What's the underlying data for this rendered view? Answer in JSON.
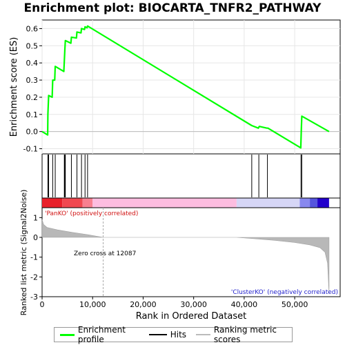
{
  "title": "Enrichment plot: BIOCARTA_TNFR2_PATHWAY",
  "chart_data": {
    "type": "line",
    "x_label": "Rank in Ordered Dataset",
    "y_label_top": "Enrichment score (ES)",
    "y_label_bottom": "Ranked list metric (Signal2Noise)",
    "x_range": [
      0,
      59000
    ],
    "x_ticks": [
      0,
      10000,
      20000,
      30000,
      40000,
      50000
    ],
    "x_tick_labels": [
      "0",
      "10,000",
      "20,000",
      "30,000",
      "40,000",
      "50,000"
    ],
    "es_range": [
      -0.13,
      0.65
    ],
    "es_ticks": [
      -0.1,
      0.0,
      0.1,
      0.2,
      0.3,
      0.4,
      0.5,
      0.6
    ],
    "es_tick_labels": [
      "-0.1",
      "0.0",
      "0.1",
      "0.2",
      "0.3",
      "0.4",
      "0.5",
      "0.6"
    ],
    "metric_range": [
      -3,
      1.5
    ],
    "metric_ticks": [
      -3,
      -2,
      -1,
      0,
      1
    ],
    "metric_tick_labels": [
      "-3",
      "-2",
      "-1",
      "0",
      "1"
    ],
    "es_color": "#00ff00",
    "es_points": [
      [
        0,
        0.0
      ],
      [
        1100,
        -0.02
      ],
      [
        1150,
        0.1
      ],
      [
        1300,
        0.21
      ],
      [
        2000,
        0.2
      ],
      [
        2100,
        0.3
      ],
      [
        2500,
        0.3
      ],
      [
        2600,
        0.38
      ],
      [
        4300,
        0.35
      ],
      [
        4400,
        0.41
      ],
      [
        4500,
        0.47
      ],
      [
        4600,
        0.53
      ],
      [
        5700,
        0.515
      ],
      [
        5800,
        0.55
      ],
      [
        6800,
        0.545
      ],
      [
        6900,
        0.58
      ],
      [
        7700,
        0.575
      ],
      [
        7800,
        0.6
      ],
      [
        8400,
        0.595
      ],
      [
        8500,
        0.61
      ],
      [
        8900,
        0.605
      ],
      [
        9000,
        0.615
      ],
      [
        41500,
        0.035
      ],
      [
        42800,
        0.02
      ],
      [
        43000,
        0.03
      ],
      [
        44500,
        0.02
      ],
      [
        44700,
        0.02
      ],
      [
        51200,
        -0.095
      ],
      [
        51300,
        0.0
      ],
      [
        51400,
        0.09
      ],
      [
        56800,
        0.0
      ]
    ],
    "hits": [
      1150,
      1300,
      2100,
      2600,
      4400,
      4500,
      4600,
      5800,
      6900,
      7800,
      8500,
      9000,
      41500,
      42900,
      44600,
      51250,
      51400
    ],
    "zero_cross": 12087,
    "zero_cross_label": "Zero cross at 12087",
    "positive_label": "'PanKO' (positively correlated)",
    "negative_label": "'ClusterKO' (negatively correlated)",
    "metric_shape": [
      [
        0,
        0.9
      ],
      [
        300,
        0.65
      ],
      [
        1000,
        0.5
      ],
      [
        3000,
        0.38
      ],
      [
        6000,
        0.25
      ],
      [
        9000,
        0.14
      ],
      [
        12087,
        0.0
      ],
      [
        38500,
        0.0
      ],
      [
        42000,
        -0.07
      ],
      [
        46000,
        -0.15
      ],
      [
        50000,
        -0.26
      ],
      [
        53000,
        -0.38
      ],
      [
        55000,
        -0.52
      ],
      [
        56000,
        -0.75
      ],
      [
        56500,
        -1.3
      ],
      [
        56800,
        -2.85
      ]
    ],
    "heatmap_segments": [
      {
        "start": 0,
        "end": 4000,
        "color": "#e8202a"
      },
      {
        "start": 4000,
        "end": 8000,
        "color": "#f04850"
      },
      {
        "start": 8000,
        "end": 10000,
        "color": "#f88090"
      },
      {
        "start": 10000,
        "end": 38500,
        "color": "#fdbde0"
      },
      {
        "start": 38500,
        "end": 51000,
        "color": "#d6d6f6"
      },
      {
        "start": 51000,
        "end": 53000,
        "color": "#8888ee"
      },
      {
        "start": 53000,
        "end": 54500,
        "color": "#5555dd"
      },
      {
        "start": 54500,
        "end": 56800,
        "color": "#2200cc"
      }
    ],
    "legend": [
      {
        "label": "Enrichment profile",
        "color": "#00ff00"
      },
      {
        "label": "Hits",
        "color": "#000000"
      },
      {
        "label": "Ranking metric scores",
        "color": "#bbbbbb"
      }
    ]
  }
}
